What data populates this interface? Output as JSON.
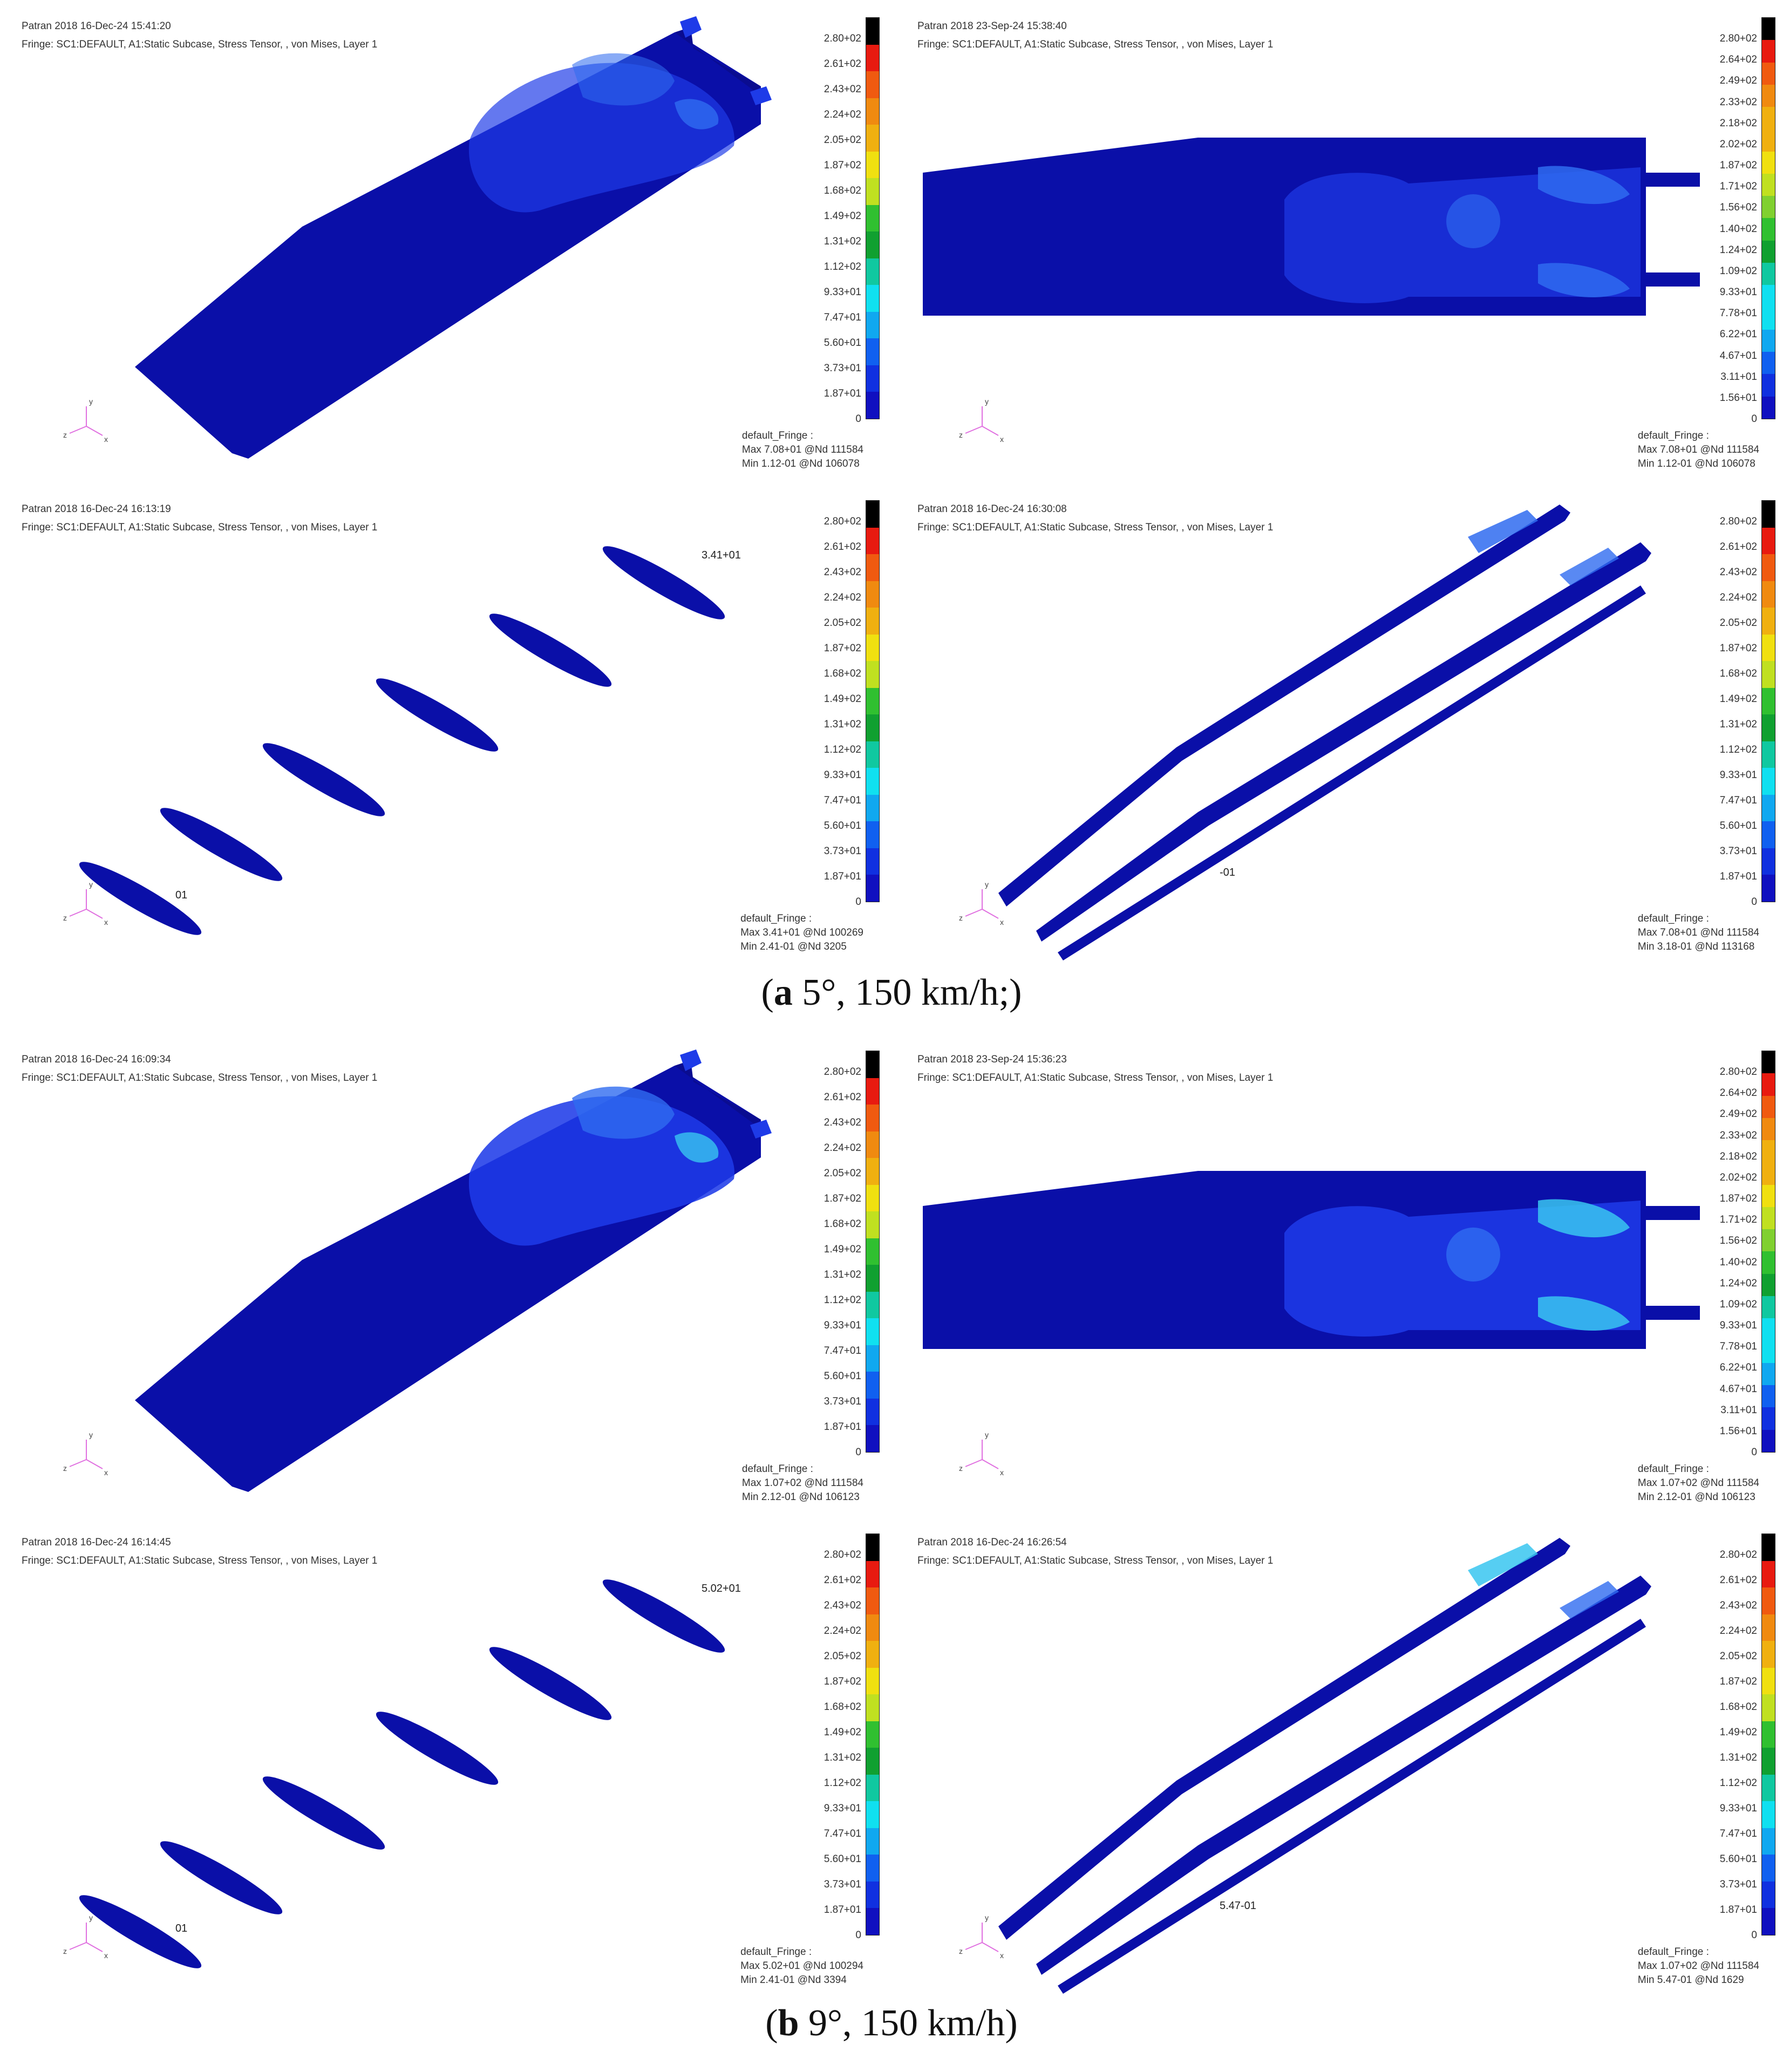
{
  "colors": {
    "mesh_dark": "#0a0fa8",
    "mesh_mid": "#1e3be8",
    "mesh_light": "#2f6bf0",
    "mesh_hot": "#38c6f0",
    "axis_pink": "#e070e0",
    "scale": [
      "#000000",
      "#e81a10",
      "#f05a10",
      "#f08a10",
      "#f0b010",
      "#f0e010",
      "#c0e020",
      "#80d030",
      "#30c030",
      "#10a030",
      "#10c8a0",
      "#10e0f0",
      "#10a8f0",
      "#1060f0",
      "#1030e0",
      "#1010c0"
    ]
  },
  "panels": [
    {
      "title_line": "Patran 2018 16-Dec-24 15:41:20",
      "fringe_line": "Fringe: SC1:DEFAULT, A1:Static Subcase, Stress Tensor, , von Mises, Layer 1",
      "scale": [
        "2.80+02",
        "2.61+02",
        "2.43+02",
        "2.24+02",
        "2.05+02",
        "1.87+02",
        "1.68+02",
        "1.49+02",
        "1.31+02",
        "1.12+02",
        "9.33+01",
        "7.47+01",
        "5.60+01",
        "3.73+01",
        "1.87+01",
        "0"
      ],
      "footer": [
        "default_Fringe :",
        "Max 7.08+01 @Nd 111584",
        "Min 1.12-01 @Nd 106078"
      ],
      "scene": "oblique-wing",
      "hot": 0.35
    },
    {
      "title_line": "Patran 2018 23-Sep-24 15:38:40",
      "fringe_line": "Fringe: SC1:DEFAULT, A1:Static Subcase, Stress Tensor, , von Mises, Layer 1",
      "scale": [
        "2.80+02",
        "2.64+02",
        "2.49+02",
        "2.33+02",
        "2.18+02",
        "2.02+02",
        "1.87+02",
        "1.71+02",
        "1.56+02",
        "1.40+02",
        "1.24+02",
        "1.09+02",
        "9.33+01",
        "7.78+01",
        "6.22+01",
        "4.67+01",
        "3.11+01",
        "1.56+01",
        "0"
      ],
      "footer": [
        "default_Fringe :",
        "Max 7.08+01 @Nd 111584",
        "Min 1.12-01 @Nd 106078"
      ],
      "scene": "plan-wing",
      "hot": 0.35
    },
    {
      "title_line": "Patran 2018 16-Dec-24 16:13:19",
      "fringe_line": "Fringe: SC1:DEFAULT, A1:Static Subcase, Stress Tensor, , von Mises, Layer 1",
      "scale": [
        "2.80+02",
        "2.61+02",
        "2.43+02",
        "2.24+02",
        "2.05+02",
        "1.87+02",
        "1.68+02",
        "1.49+02",
        "1.31+02",
        "1.12+02",
        "9.33+01",
        "7.47+01",
        "5.60+01",
        "3.73+01",
        "1.87+01",
        "0"
      ],
      "footer": [
        "default_Fringe :",
        "Max 3.41+01 @Nd 100269",
        "Min 2.41-01 @Nd 3205"
      ],
      "scene": "ribs",
      "label_top": "3.41+01",
      "label_bottom": "01"
    },
    {
      "title_line": "Patran 2018 16-Dec-24 16:30:08",
      "fringe_line": "Fringe: SC1:DEFAULT, A1:Static Subcase, Stress Tensor, , von Mises, Layer 1",
      "scale": [
        "2.80+02",
        "2.61+02",
        "2.43+02",
        "2.24+02",
        "2.05+02",
        "1.87+02",
        "1.68+02",
        "1.49+02",
        "1.31+02",
        "1.12+02",
        "9.33+01",
        "7.47+01",
        "5.60+01",
        "3.73+01",
        "1.87+01",
        "0"
      ],
      "footer": [
        "default_Fringe :",
        "Max 7.08+01 @Nd 111584",
        "Min 3.18-01 @Nd 113168"
      ],
      "scene": "spars",
      "label_mid": "-01",
      "hot": 0.3
    },
    {
      "title_line": "Patran 2018 16-Dec-24 16:09:34",
      "fringe_line": "Fringe: SC1:DEFAULT, A1:Static Subcase, Stress Tensor, , von Mises, Layer 1",
      "scale": [
        "2.80+02",
        "2.61+02",
        "2.43+02",
        "2.24+02",
        "2.05+02",
        "1.87+02",
        "1.68+02",
        "1.49+02",
        "1.31+02",
        "1.12+02",
        "9.33+01",
        "7.47+01",
        "5.60+01",
        "3.73+01",
        "1.87+01",
        "0"
      ],
      "footer": [
        "default_Fringe :",
        "Max 1.07+02 @Nd 111584",
        "Min 2.12-01 @Nd 106123"
      ],
      "scene": "oblique-wing",
      "hot": 0.8
    },
    {
      "title_line": "Patran 2018 23-Sep-24 15:36:23",
      "fringe_line": "Fringe: SC1:DEFAULT, A1:Static Subcase, Stress Tensor, , von Mises, Layer 1",
      "scale": [
        "2.80+02",
        "2.64+02",
        "2.49+02",
        "2.33+02",
        "2.18+02",
        "2.02+02",
        "1.87+02",
        "1.71+02",
        "1.56+02",
        "1.40+02",
        "1.24+02",
        "1.09+02",
        "9.33+01",
        "7.78+01",
        "6.22+01",
        "4.67+01",
        "3.11+01",
        "1.56+01",
        "0"
      ],
      "footer": [
        "default_Fringe :",
        "Max 1.07+02 @Nd 111584",
        "Min 2.12-01 @Nd 106123"
      ],
      "scene": "plan-wing",
      "hot": 0.8
    },
    {
      "title_line": "Patran 2018 16-Dec-24 16:14:45",
      "fringe_line": "Fringe: SC1:DEFAULT, A1:Static Subcase, Stress Tensor, , von Mises, Layer 1",
      "scale": [
        "2.80+02",
        "2.61+02",
        "2.43+02",
        "2.24+02",
        "2.05+02",
        "1.87+02",
        "1.68+02",
        "1.49+02",
        "1.31+02",
        "1.12+02",
        "9.33+01",
        "7.47+01",
        "5.60+01",
        "3.73+01",
        "1.87+01",
        "0"
      ],
      "footer": [
        "default_Fringe :",
        "Max 5.02+01 @Nd 100294",
        "Min 2.41-01 @Nd 3394"
      ],
      "scene": "ribs",
      "label_top": "5.02+01",
      "label_bottom": "01"
    },
    {
      "title_line": "Patran 2018 16-Dec-24 16:26:54",
      "fringe_line": "Fringe: SC1:DEFAULT, A1:Static Subcase, Stress Tensor, , von Mises, Layer 1",
      "scale": [
        "2.80+02",
        "2.61+02",
        "2.43+02",
        "2.24+02",
        "2.05+02",
        "1.87+02",
        "1.68+02",
        "1.49+02",
        "1.31+02",
        "1.12+02",
        "9.33+01",
        "7.47+01",
        "5.60+01",
        "3.73+01",
        "1.87+01",
        "0"
      ],
      "footer": [
        "default_Fringe :",
        "Max 1.07+02 @Nd 111584",
        "Min 5.47-01 @Nd 1629"
      ],
      "scene": "spars",
      "label_mid": "5.47-01",
      "hot": 0.7
    }
  ],
  "axes": {
    "x": "x",
    "y": "y",
    "z": "z"
  },
  "captions": {
    "a_letter": "a",
    "a_text": " 5°, 150 km/h;",
    "b_letter": "b",
    "b_text": " 9°, 150 km/h"
  }
}
